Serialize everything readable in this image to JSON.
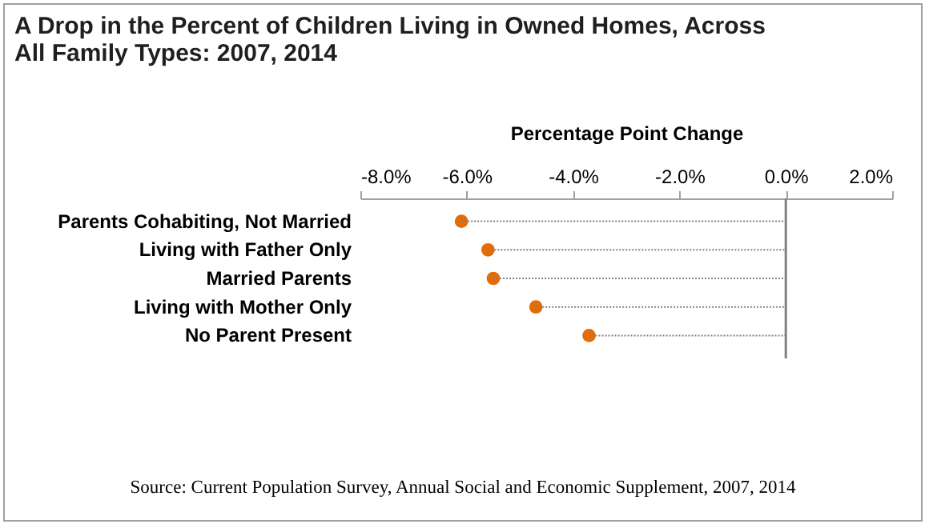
{
  "chart_data": {
    "type": "lollipop",
    "orientation": "horizontal",
    "title": "A Drop in the Percent of Children Living in Owned Homes, Across All Family Types:  2007, 2014",
    "xlabel": "Percentage Point Change",
    "categories": [
      "Parents Cohabiting, Not Married",
      "Living with Father Only",
      "Married Parents",
      "Living with Mother Only",
      "No Parent Present"
    ],
    "series": [
      {
        "color": "#e36c09",
        "values": [
          -6.1,
          -5.6,
          -5.5,
          -4.7,
          -3.7
        ]
      }
    ],
    "xlim": [
      -8,
      2
    ],
    "xticks": [
      {
        "value": -8,
        "label": "-8.0%"
      },
      {
        "value": -6,
        "label": "-6.0%"
      },
      {
        "value": -4,
        "label": "-4.0%"
      },
      {
        "value": -2,
        "label": "-2.0%"
      },
      {
        "value": 0,
        "label": "0.0%"
      },
      {
        "value": 2,
        "label": "2.0%"
      }
    ],
    "ref_lines": [
      {
        "axis": "x",
        "value": 0,
        "color": "#808080"
      }
    ],
    "marker": "circle",
    "line_style": "dotted",
    "grid": false,
    "annotations": [
      "Source: Current Population Survey,  Annual Social and Economic Supplement, 2007, 2014"
    ]
  }
}
